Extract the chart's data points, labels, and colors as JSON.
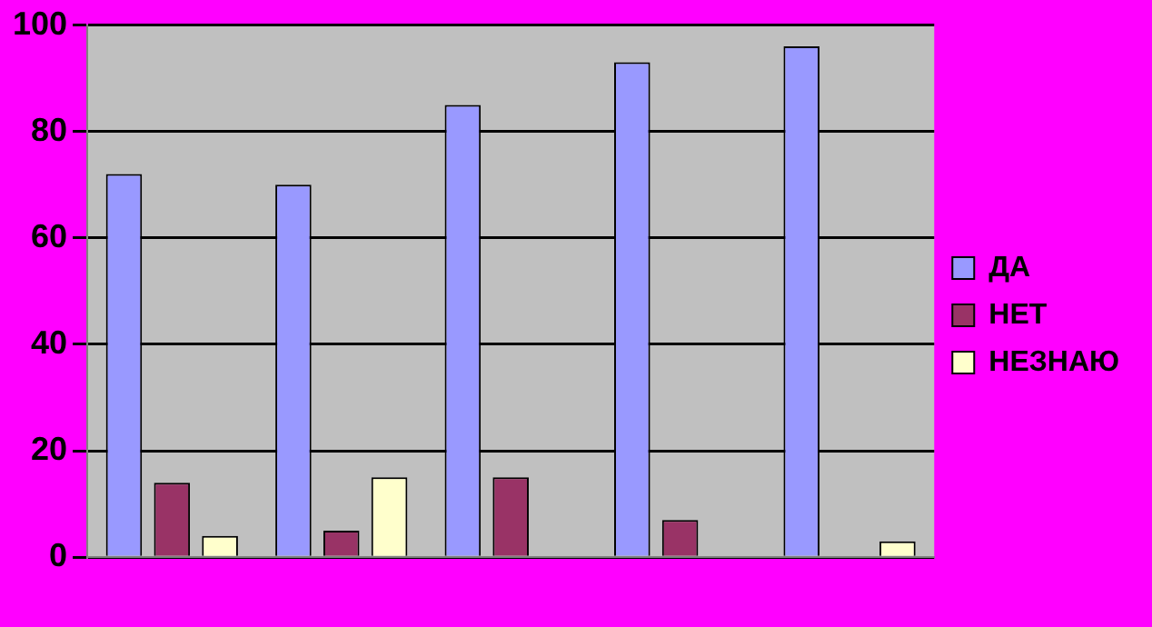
{
  "chart_data": {
    "type": "bar",
    "categories": [
      null,
      null,
      null,
      null,
      null
    ],
    "series": [
      {
        "name": "ДА",
        "color": "#9999ff",
        "values": [
          72,
          70,
          85,
          93,
          96
        ]
      },
      {
        "name": "НЕТ",
        "color": "#993366",
        "values": [
          14,
          5,
          15,
          7,
          0
        ]
      },
      {
        "name": "НЕЗНАЮ",
        "color": "#ffffcc",
        "values": [
          4,
          15,
          0,
          0,
          3
        ]
      }
    ],
    "ylim": [
      0,
      100
    ],
    "yticks": [
      0,
      20,
      40,
      60,
      80,
      100
    ],
    "grid": "y",
    "legend": "right"
  }
}
